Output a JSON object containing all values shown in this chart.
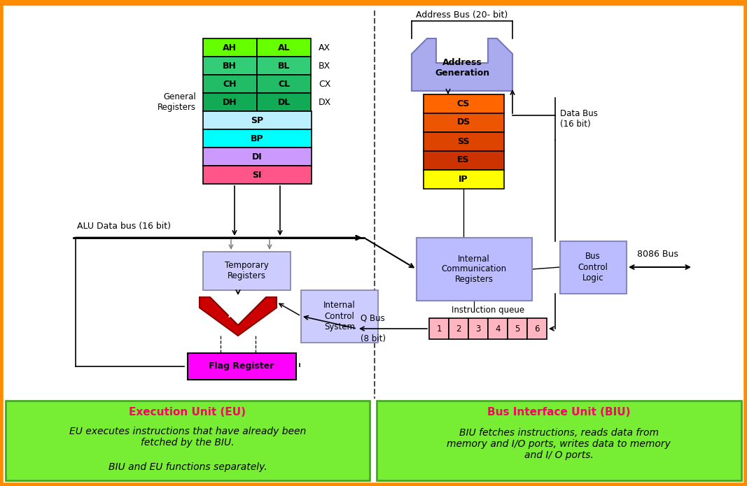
{
  "bg_color": "#ffffff",
  "orange_border": "#FF8C00",
  "bottom_green": "#77EE33",
  "eu_title": "Execution Unit (EU)",
  "biu_title": "Bus Interface Unit (BIU)",
  "eu_text1": "EU executes instructions that have already been\nfetched by the BIU.",
  "eu_text2": "BIU and EU functions separately.",
  "biu_text": "BIU fetches instructions, reads data from\nmemory and I/O ports, writes data to memory\nand I/ O ports.",
  "reg_AH_AL": "#66FF00",
  "reg_BH_BL": "#33CC77",
  "reg_CH_CL": "#22BB66",
  "reg_DH_DL": "#11AA55",
  "reg_SP": "#BBEEFF",
  "reg_BP": "#00FFFF",
  "reg_DI": "#CC99FF",
  "reg_SI": "#FF5588",
  "seg_CS": "#FF6600",
  "seg_DS": "#EE5500",
  "seg_SS": "#DD4400",
  "seg_ES": "#CC3300",
  "seg_IP": "#FFFF00",
  "addr_gen_color": "#AAAAEE",
  "icr_color": "#BBBBFF",
  "bcl_color": "#BBBBFF",
  "temp_reg_color": "#CCCCFF",
  "ics_color": "#CCCCFF",
  "flag_color": "#FF00FF",
  "alu_color": "#CC0000",
  "queue_color": "#FFB6C1",
  "title_color": "#FF0066"
}
